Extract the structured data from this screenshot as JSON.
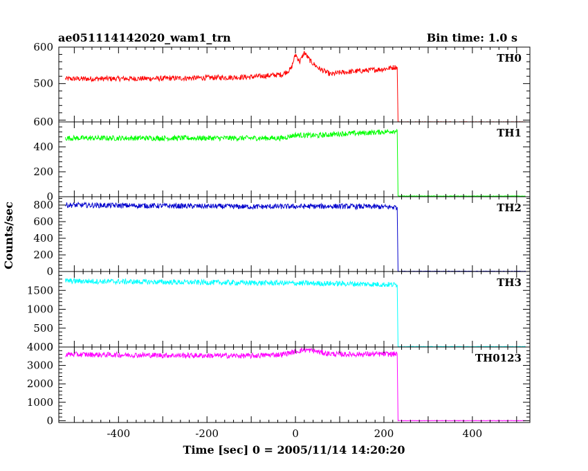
{
  "chart_data": {
    "type": "line",
    "title": "ae051114142020_wam1_trn",
    "subtitle": "Bin time: 1.0 s",
    "xlabel": "Time [sec] 0 = 2005/11/14 14:20:20",
    "ylabel": "Counts/sec",
    "xlim": [
      -535,
      530
    ],
    "xticks": [
      "-400",
      "-200",
      "0",
      "200",
      "400"
    ],
    "xtick_values": [
      -400,
      -200,
      0,
      200,
      400
    ],
    "grid": false,
    "colors": {
      "TH0": "#ff0000",
      "TH1": "#00ff00",
      "TH2": "#0000cc",
      "TH3": "#00ffff",
      "TH0123": "#ff00ff"
    },
    "panels": [
      {
        "name": "TH0",
        "ylim": [
          395,
          600
        ],
        "yticks": [
          "500",
          "600"
        ],
        "ytick_values": [
          500,
          600
        ],
        "keypoints": [
          [
            -520,
            513
          ],
          [
            -300,
            514
          ],
          [
            -100,
            518
          ],
          [
            -30,
            525
          ],
          [
            -10,
            540
          ],
          [
            0,
            580
          ],
          [
            10,
            560
          ],
          [
            20,
            585
          ],
          [
            35,
            560
          ],
          [
            55,
            540
          ],
          [
            80,
            525
          ],
          [
            100,
            530
          ],
          [
            150,
            535
          ],
          [
            200,
            540
          ],
          [
            225,
            545
          ],
          [
            230,
            545
          ],
          [
            232,
            395
          ],
          [
            520,
            395
          ]
        ]
      },
      {
        "name": "TH1",
        "ylim": [
          0,
          600
        ],
        "yticks": [
          "0",
          "200",
          "400",
          "600"
        ],
        "ytick_values": [
          0,
          200,
          400,
          600
        ],
        "keypoints": [
          [
            -520,
            470
          ],
          [
            -200,
            470
          ],
          [
            -30,
            470
          ],
          [
            0,
            495
          ],
          [
            50,
            490
          ],
          [
            100,
            505
          ],
          [
            150,
            510
          ],
          [
            200,
            520
          ],
          [
            230,
            530
          ],
          [
            232,
            5
          ],
          [
            520,
            5
          ]
        ]
      },
      {
        "name": "TH2",
        "ylim": [
          0,
          900
        ],
        "yticks": [
          "0",
          "200",
          "400",
          "600",
          "800"
        ],
        "ytick_values": [
          0,
          200,
          400,
          600,
          800
        ],
        "keypoints": [
          [
            -520,
            800
          ],
          [
            -300,
            790
          ],
          [
            -100,
            780
          ],
          [
            100,
            785
          ],
          [
            230,
            775
          ],
          [
            232,
            3
          ],
          [
            520,
            3
          ]
        ]
      },
      {
        "name": "TH3",
        "ylim": [
          0,
          2000
        ],
        "yticks": [
          "0",
          "500",
          "1000",
          "1500"
        ],
        "ytick_values": [
          0,
          500,
          1000,
          1500
        ],
        "keypoints": [
          [
            -520,
            1750
          ],
          [
            -300,
            1720
          ],
          [
            -100,
            1700
          ],
          [
            100,
            1680
          ],
          [
            230,
            1650
          ],
          [
            232,
            10
          ],
          [
            520,
            10
          ]
        ]
      },
      {
        "name": "TH0123",
        "ylim": [
          -100,
          4000
        ],
        "yticks": [
          "0",
          "1000",
          "2000",
          "3000",
          "4000"
        ],
        "ytick_values": [
          0,
          1000,
          2000,
          3000,
          4000
        ],
        "keypoints": [
          [
            -520,
            3600
          ],
          [
            -300,
            3550
          ],
          [
            -100,
            3520
          ],
          [
            -30,
            3600
          ],
          [
            0,
            3750
          ],
          [
            20,
            3850
          ],
          [
            40,
            3800
          ],
          [
            70,
            3650
          ],
          [
            100,
            3600
          ],
          [
            230,
            3620
          ],
          [
            232,
            0
          ],
          [
            520,
            0
          ]
        ]
      }
    ]
  }
}
